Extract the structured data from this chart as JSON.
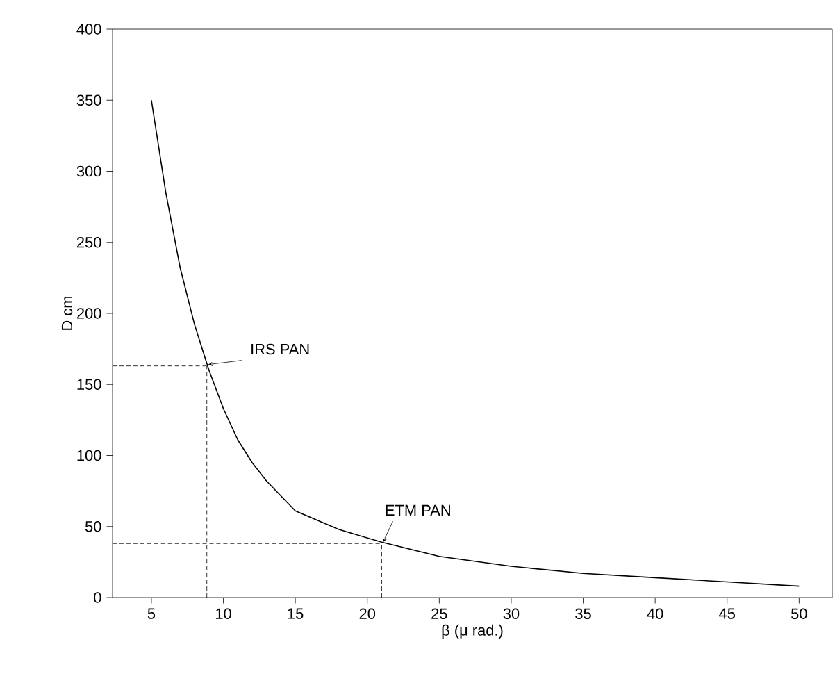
{
  "chart_data": {
    "type": "line",
    "xlabel": "β (μ rad.)",
    "ylabel": "D cm",
    "xlim": [
      2.3,
      52.3
    ],
    "ylim": [
      0,
      400
    ],
    "xticks": [
      5,
      10,
      15,
      20,
      25,
      30,
      35,
      40,
      45,
      50
    ],
    "yticks": [
      0,
      50,
      100,
      150,
      200,
      250,
      300,
      350,
      400
    ],
    "series": [
      {
        "color": "#000000",
        "x": [
          5,
          6,
          7,
          8,
          9,
          10,
          11,
          12,
          13,
          15,
          18,
          21,
          25,
          30,
          35,
          40,
          45,
          50
        ],
        "values": [
          350,
          285,
          232,
          192,
          160,
          133,
          111,
          95,
          82,
          61,
          48,
          39,
          29,
          22,
          17,
          14,
          11,
          8
        ]
      },
      {
        "color": "#000000",
        "line_style": "dashed",
        "x": [
          8.85,
          8.85
        ],
        "values": [
          0,
          163
        ]
      },
      {
        "color": "#000000",
        "line_style": "dashed",
        "x": [
          2.3,
          8.85
        ],
        "values": [
          163,
          163
        ]
      },
      {
        "color": "#000000",
        "line_style": "dashed",
        "x": [
          21,
          21
        ],
        "values": [
          0,
          38
        ]
      },
      {
        "color": "#000000",
        "line_style": "dashed",
        "x": [
          2.3,
          21
        ],
        "values": [
          38,
          38
        ]
      }
    ],
    "annotations": [
      {
        "text": "IRS PAN",
        "x": 8.85,
        "y": 163
      },
      {
        "text": "ETM PAN",
        "x": 21,
        "y": 38
      }
    ],
    "marker": "none",
    "line_style": "solid",
    "grid": false
  }
}
